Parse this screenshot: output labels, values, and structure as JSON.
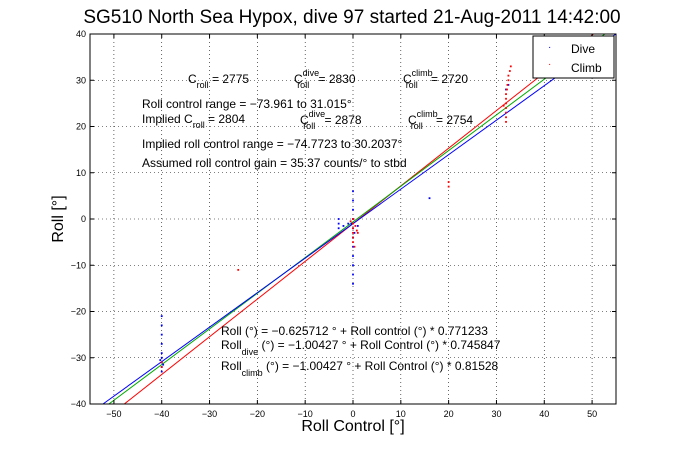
{
  "chart_data": {
    "type": "scatter",
    "title": "SG510 North Sea Hypox, dive 97 started 21-Aug-2011 14:42:00",
    "xlabel": "Roll Control [°]",
    "ylabel": "Roll [°]",
    "xlim": [
      -55,
      55
    ],
    "ylim": [
      -40,
      40
    ],
    "xticks": [
      -50,
      -40,
      -30,
      -20,
      -10,
      0,
      10,
      20,
      30,
      40,
      50
    ],
    "yticks": [
      -40,
      -30,
      -20,
      -10,
      0,
      10,
      20,
      30,
      40
    ],
    "grid": true,
    "legend_position": "top-right",
    "legend": [
      {
        "label": "Dive",
        "color": "#0000ff"
      },
      {
        "label": "Climb",
        "color": "#ff0000"
      }
    ],
    "series": [
      {
        "name": "Dive",
        "color": "#0000ff",
        "points": [
          [
            -40,
            -21
          ],
          [
            -40,
            -23
          ],
          [
            -40,
            -25
          ],
          [
            -40,
            -27
          ],
          [
            -40,
            -29
          ],
          [
            -40,
            -30
          ],
          [
            -40,
            -31
          ],
          [
            -40,
            -32
          ],
          [
            -40,
            -33
          ],
          [
            -40.3,
            -30.5
          ],
          [
            -39.7,
            -31.5
          ],
          [
            0,
            2
          ],
          [
            0,
            4
          ],
          [
            0,
            6
          ],
          [
            0,
            0
          ],
          [
            0,
            -2
          ],
          [
            0,
            -4
          ],
          [
            0,
            -6
          ],
          [
            0,
            -8
          ],
          [
            0,
            -10
          ],
          [
            0,
            -12
          ],
          [
            0,
            -14
          ],
          [
            -0.3,
            -1
          ],
          [
            0.3,
            -3
          ],
          [
            -3,
            -2
          ],
          [
            -3,
            -1
          ],
          [
            -3,
            0
          ],
          [
            -2,
            -1.5
          ],
          [
            -1,
            -1
          ],
          [
            1,
            -1.5
          ],
          [
            16,
            4.5
          ],
          [
            32,
            28
          ],
          [
            32.5,
            29
          ]
        ]
      },
      {
        "name": "Climb",
        "color": "#ff0000",
        "points": [
          [
            -24,
            -11
          ],
          [
            0,
            0
          ],
          [
            0,
            -1
          ],
          [
            0,
            -2
          ],
          [
            0,
            -3
          ],
          [
            0,
            -4
          ],
          [
            0.5,
            -1.5
          ],
          [
            0.8,
            -2.5
          ],
          [
            -0.5,
            -0.5
          ],
          [
            1,
            -3
          ],
          [
            0,
            -5
          ],
          [
            0.3,
            -6
          ],
          [
            20,
            7
          ],
          [
            20,
            8
          ],
          [
            32,
            21
          ],
          [
            32,
            22
          ],
          [
            32,
            23
          ],
          [
            32,
            24
          ],
          [
            32,
            25
          ],
          [
            32,
            26
          ],
          [
            32,
            27
          ],
          [
            32.2,
            28
          ],
          [
            32.3,
            29
          ],
          [
            32.5,
            30
          ],
          [
            32.5,
            31
          ],
          [
            32.8,
            32
          ],
          [
            33,
            33
          ],
          [
            31.5,
            24.5
          ],
          [
            -40,
            -31
          ],
          [
            -40,
            -32
          ]
        ]
      }
    ],
    "fit_lines": [
      {
        "color": "#ff0000",
        "slope": 0.81528,
        "intercept": -1.00427
      },
      {
        "color": "#00aa00",
        "slope": 0.771233,
        "intercept": -0.625712
      },
      {
        "color": "#0000ff",
        "slope": 0.745847,
        "intercept": -1.00427
      }
    ],
    "annotations": {
      "c_roll": {
        "main": "C",
        "sub": "roll",
        "value": " = 2775"
      },
      "c_dive": {
        "main": "C",
        "sup": "dive",
        "sub": "roll",
        "value": " = 2830"
      },
      "c_climb": {
        "main": "C",
        "sup": "climb",
        "sub": "roll",
        "value": " = 2720"
      },
      "range": "Roll control range = −73.961 to 31.015°",
      "implied_c_prefix": "Implied C",
      "implied_c_sub": "roll",
      "implied_c_value": " = 2804",
      "implied_dive": {
        "main": "C",
        "sup": "dive",
        "sub": "roll",
        "value": " = 2878"
      },
      "implied_climb": {
        "main": "C",
        "sup": "climb",
        "sub": "roll",
        "value": " = 2754"
      },
      "implied_range": "Implied roll control range = −74.7723 to 30.2037°",
      "gain": "Assumed roll control gain = 35.37 counts/° to stbd",
      "eq1": "Roll (°) = −0.625712 ° + Roll control (°) * 0.771233",
      "eq2_prefix": "Roll",
      "eq2_sub": "dive",
      "eq2_rest": " (°) = −1.00427 ° + Roll Control (°) * 0.745847",
      "eq3_prefix": "Roll",
      "eq3_sub": "climb",
      "eq3_rest": " (°) = −1.00427 ° + Roll Control (°) * 0.81528"
    }
  }
}
